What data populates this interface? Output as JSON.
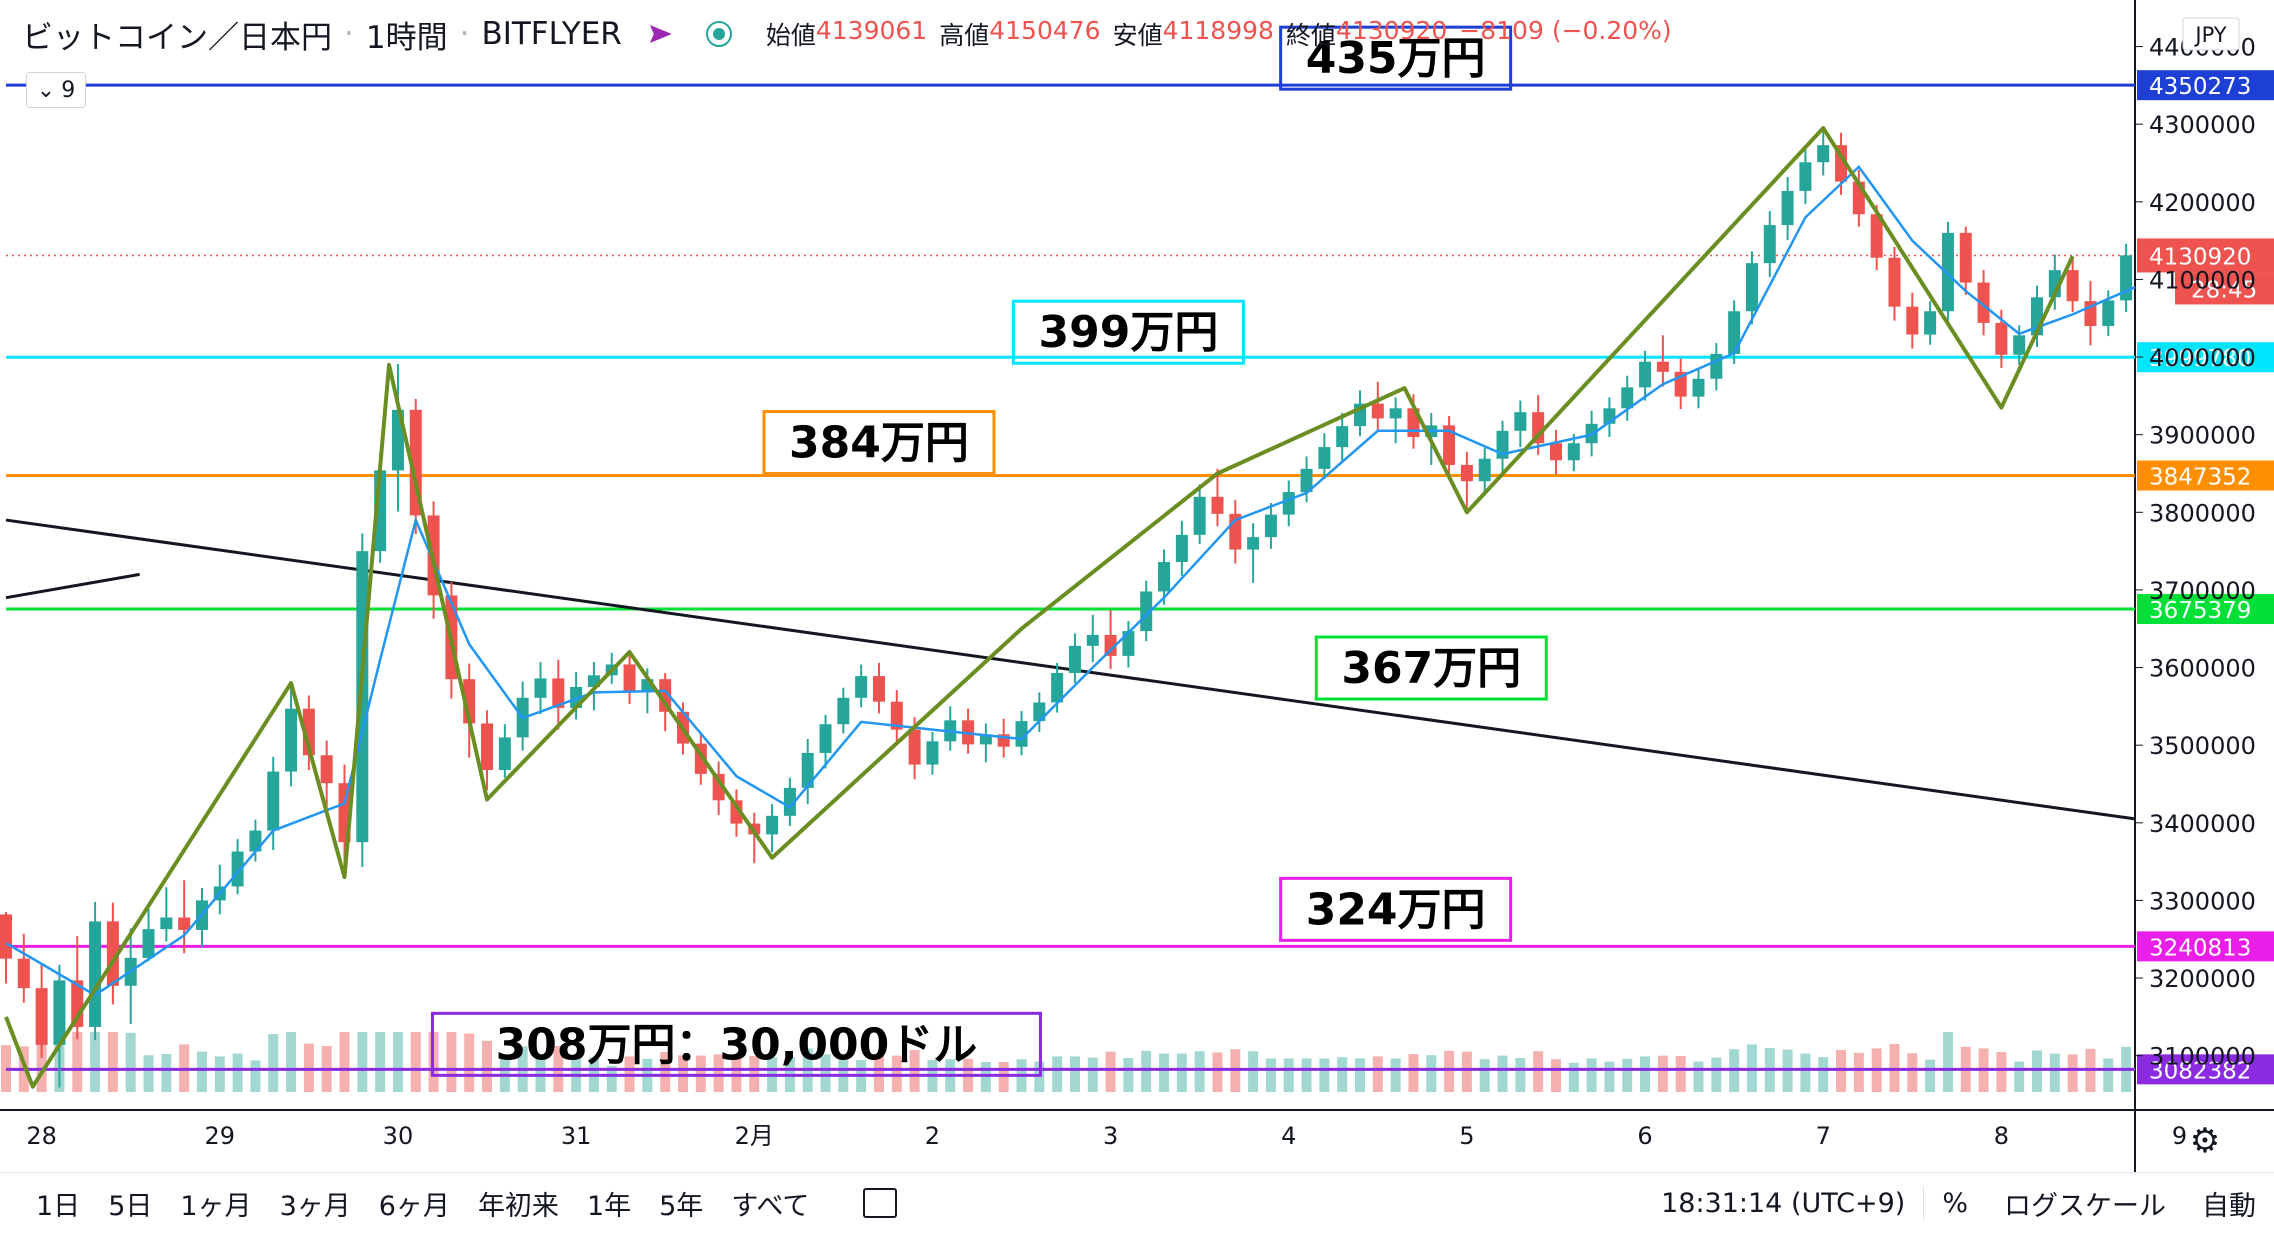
{
  "header": {
    "symbol": "ビットコイン／日本円",
    "interval": "1時間",
    "exchange": "BITFLYER",
    "ohlc": [
      {
        "key": "始値",
        "value": "4139061"
      },
      {
        "key": "高値",
        "value": "4150476"
      },
      {
        "key": "安値",
        "value": "4118998"
      },
      {
        "key": "終値",
        "value": "4130920"
      }
    ],
    "change": "−8109 (−0.20%)",
    "indicator_count": "9"
  },
  "currency_badge": "JPY",
  "last_price": "4130920",
  "countdown": "28:45",
  "colors": {
    "up": "#26a69a",
    "down": "#ef5350",
    "ma": "#2196f3",
    "zigzag": "#6b8e23",
    "trend": "#131722"
  },
  "chart_data": {
    "type": "candlestick",
    "y_axis": {
      "ylim": [
        3030000,
        4460000
      ],
      "ticks": [
        3100000,
        3200000,
        3300000,
        3400000,
        3500000,
        3600000,
        3700000,
        3800000,
        3900000,
        4000000,
        4100000,
        4200000,
        4300000,
        4400000
      ],
      "tick_labels": [
        "3100000",
        "3200000",
        "3300000",
        "3400000",
        "3500000",
        "3600000",
        "3700000",
        "3800000",
        "3900000",
        "4000000",
        "4100000",
        "4200000",
        "4300000",
        "4400000"
      ]
    },
    "x_axis": {
      "xlim": [
        0,
        11.95
      ],
      "ticks": [
        {
          "x": 0.2,
          "label": "28"
        },
        {
          "x": 1.2,
          "label": "29"
        },
        {
          "x": 2.2,
          "label": "30"
        },
        {
          "x": 3.2,
          "label": "31"
        },
        {
          "x": 4.2,
          "label": "2月"
        },
        {
          "x": 5.2,
          "label": "2"
        },
        {
          "x": 6.2,
          "label": "3"
        },
        {
          "x": 7.2,
          "label": "4"
        },
        {
          "x": 8.2,
          "label": "5"
        },
        {
          "x": 9.2,
          "label": "6"
        },
        {
          "x": 10.2,
          "label": "7"
        },
        {
          "x": 11.2,
          "label": "8"
        },
        {
          "x": 12.2,
          "label": "9"
        }
      ]
    },
    "levels": [
      {
        "price": 4350273,
        "label": "4350273",
        "note": "435万円",
        "color": "#1e3fd6",
        "note_x": 7.8
      },
      {
        "price": 3999780,
        "label": "3999780",
        "note": "399万円",
        "color": "#00e5ff",
        "note_x": 6.3
      },
      {
        "price": 3847352,
        "label": "3847352",
        "note": "384万円",
        "color": "#ff8f00",
        "note_x": 4.9
      },
      {
        "price": 3675379,
        "label": "3675379",
        "note": "367万円",
        "color": "#00e036",
        "note_x": 8.0
      },
      {
        "price": 3240813,
        "label": "3240813",
        "note": "324万円",
        "color": "#e91ee9",
        "note_x": 7.8
      },
      {
        "price": 3082382,
        "label": "3082382",
        "note": "308万円：30,000ドル",
        "color": "#8a2be2",
        "note_x": 4.1
      }
    ],
    "zigzag": [
      [
        0.0,
        3150000
      ],
      [
        0.15,
        3060000
      ],
      [
        1.6,
        3580000
      ],
      [
        1.9,
        3330000
      ],
      [
        2.15,
        3990000
      ],
      [
        2.7,
        3430000
      ],
      [
        3.5,
        3620000
      ],
      [
        4.3,
        3355000
      ],
      [
        5.7,
        3650000
      ],
      [
        6.8,
        3850000
      ],
      [
        7.85,
        3960000
      ],
      [
        8.2,
        3800000
      ],
      [
        10.2,
        4295000
      ],
      [
        11.2,
        3935000
      ],
      [
        11.6,
        4130000
      ]
    ],
    "trendlines": [
      {
        "from": [
          0.0,
          3790000
        ],
        "to": [
          11.95,
          3405000
        ]
      },
      {
        "from": [
          0.0,
          3690000
        ],
        "to": [
          0.75,
          3720000
        ]
      }
    ],
    "candles": [
      [
        0.0,
        3282000,
        3285000,
        3193000,
        3225000
      ],
      [
        0.1,
        3225000,
        3257000,
        3168000,
        3187000
      ],
      [
        0.2,
        3187000,
        3219000,
        3097000,
        3114000
      ],
      [
        0.3,
        3114000,
        3217000,
        3059000,
        3197000
      ],
      [
        0.4,
        3197000,
        3254000,
        3121000,
        3137000
      ],
      [
        0.5,
        3137000,
        3298000,
        3120000,
        3273000
      ],
      [
        0.6,
        3273000,
        3297000,
        3166000,
        3190000
      ],
      [
        0.7,
        3190000,
        3264000,
        3141000,
        3226000
      ],
      [
        0.8,
        3226000,
        3289000,
        3222000,
        3263000
      ],
      [
        0.9,
        3263000,
        3317000,
        3247000,
        3278000
      ],
      [
        1.0,
        3278000,
        3326000,
        3232000,
        3262000
      ],
      [
        1.1,
        3262000,
        3316000,
        3240000,
        3300000
      ],
      [
        1.2,
        3300000,
        3346000,
        3282000,
        3318000
      ],
      [
        1.3,
        3318000,
        3379000,
        3308000,
        3363000
      ],
      [
        1.4,
        3363000,
        3404000,
        3350000,
        3390000
      ],
      [
        1.5,
        3390000,
        3485000,
        3365000,
        3466000
      ],
      [
        1.6,
        3466000,
        3578000,
        3447000,
        3547000
      ],
      [
        1.7,
        3547000,
        3564000,
        3468000,
        3487000
      ],
      [
        1.8,
        3487000,
        3506000,
        3416000,
        3451000
      ],
      [
        1.9,
        3451000,
        3475000,
        3344000,
        3375000
      ],
      [
        2.0,
        3375000,
        3773000,
        3343000,
        3750000
      ],
      [
        2.1,
        3750000,
        3876000,
        3735000,
        3854000
      ],
      [
        2.2,
        3854000,
        3991000,
        3801000,
        3932000
      ],
      [
        2.3,
        3932000,
        3946000,
        3772000,
        3796000
      ],
      [
        2.4,
        3796000,
        3814000,
        3663000,
        3693000
      ],
      [
        2.5,
        3693000,
        3710000,
        3560000,
        3585000
      ],
      [
        2.6,
        3585000,
        3605000,
        3484000,
        3528000
      ],
      [
        2.7,
        3528000,
        3545000,
        3442000,
        3468000
      ],
      [
        2.8,
        3468000,
        3527000,
        3458000,
        3510000
      ],
      [
        2.9,
        3510000,
        3582000,
        3493000,
        3561000
      ],
      [
        3.0,
        3561000,
        3607000,
        3540000,
        3586000
      ],
      [
        3.1,
        3586000,
        3610000,
        3520000,
        3548000
      ],
      [
        3.2,
        3548000,
        3594000,
        3533000,
        3575000
      ],
      [
        3.3,
        3575000,
        3607000,
        3545000,
        3590000
      ],
      [
        3.4,
        3590000,
        3619000,
        3579000,
        3604000
      ],
      [
        3.5,
        3604000,
        3617000,
        3553000,
        3569000
      ],
      [
        3.6,
        3569000,
        3599000,
        3541000,
        3585000
      ],
      [
        3.7,
        3585000,
        3593000,
        3518000,
        3543000
      ],
      [
        3.8,
        3543000,
        3555000,
        3488000,
        3502000
      ],
      [
        3.9,
        3502000,
        3515000,
        3449000,
        3463000
      ],
      [
        4.0,
        3463000,
        3479000,
        3410000,
        3429000
      ],
      [
        4.1,
        3429000,
        3443000,
        3382000,
        3399000
      ],
      [
        4.2,
        3399000,
        3413000,
        3348000,
        3385000
      ],
      [
        4.3,
        3385000,
        3424000,
        3362000,
        3409000
      ],
      [
        4.4,
        3409000,
        3458000,
        3396000,
        3445000
      ],
      [
        4.5,
        3445000,
        3508000,
        3424000,
        3490000
      ],
      [
        4.6,
        3490000,
        3539000,
        3470000,
        3527000
      ],
      [
        4.7,
        3527000,
        3574000,
        3515000,
        3561000
      ],
      [
        4.8,
        3561000,
        3604000,
        3549000,
        3589000
      ],
      [
        4.9,
        3589000,
        3606000,
        3541000,
        3556000
      ],
      [
        5.0,
        3556000,
        3571000,
        3505000,
        3520000
      ],
      [
        5.1,
        3520000,
        3536000,
        3456000,
        3475000
      ],
      [
        5.2,
        3475000,
        3517000,
        3462000,
        3505000
      ],
      [
        5.3,
        3505000,
        3550000,
        3493000,
        3532000
      ],
      [
        5.4,
        3532000,
        3547000,
        3489000,
        3501000
      ],
      [
        5.5,
        3501000,
        3528000,
        3478000,
        3514000
      ],
      [
        5.6,
        3514000,
        3534000,
        3484000,
        3498000
      ],
      [
        5.7,
        3498000,
        3544000,
        3487000,
        3531000
      ],
      [
        5.8,
        3531000,
        3568000,
        3517000,
        3555000
      ],
      [
        5.9,
        3555000,
        3606000,
        3542000,
        3593000
      ],
      [
        6.0,
        3593000,
        3644000,
        3580000,
        3628000
      ],
      [
        6.1,
        3628000,
        3668000,
        3607000,
        3642000
      ],
      [
        6.2,
        3642000,
        3674000,
        3598000,
        3615000
      ],
      [
        6.3,
        3615000,
        3660000,
        3600000,
        3647000
      ],
      [
        6.4,
        3647000,
        3712000,
        3634000,
        3698000
      ],
      [
        6.5,
        3698000,
        3752000,
        3681000,
        3736000
      ],
      [
        6.6,
        3736000,
        3789000,
        3718000,
        3771000
      ],
      [
        6.7,
        3771000,
        3836000,
        3759000,
        3820000
      ],
      [
        6.8,
        3820000,
        3856000,
        3782000,
        3798000
      ],
      [
        6.9,
        3798000,
        3816000,
        3734000,
        3752000
      ],
      [
        7.0,
        3752000,
        3786000,
        3709000,
        3768000
      ],
      [
        7.1,
        3768000,
        3812000,
        3753000,
        3797000
      ],
      [
        7.2,
        3797000,
        3841000,
        3782000,
        3826000
      ],
      [
        7.3,
        3826000,
        3872000,
        3813000,
        3856000
      ],
      [
        7.4,
        3856000,
        3902000,
        3843000,
        3884000
      ],
      [
        7.5,
        3884000,
        3928000,
        3866000,
        3911000
      ],
      [
        7.6,
        3911000,
        3957000,
        3898000,
        3940000
      ],
      [
        7.7,
        3940000,
        3968000,
        3904000,
        3921000
      ],
      [
        7.8,
        3921000,
        3948000,
        3889000,
        3934000
      ],
      [
        7.9,
        3934000,
        3952000,
        3882000,
        3897000
      ],
      [
        8.0,
        3897000,
        3928000,
        3861000,
        3912000
      ],
      [
        8.1,
        3912000,
        3924000,
        3846000,
        3861000
      ],
      [
        8.2,
        3861000,
        3878000,
        3802000,
        3840000
      ],
      [
        8.3,
        3840000,
        3883000,
        3826000,
        3869000
      ],
      [
        8.4,
        3869000,
        3918000,
        3852000,
        3905000
      ],
      [
        8.5,
        3905000,
        3944000,
        3884000,
        3929000
      ],
      [
        8.6,
        3929000,
        3951000,
        3874000,
        3889000
      ],
      [
        8.7,
        3889000,
        3906000,
        3849000,
        3867000
      ],
      [
        8.8,
        3867000,
        3901000,
        3853000,
        3889000
      ],
      [
        8.9,
        3889000,
        3931000,
        3872000,
        3914000
      ],
      [
        9.0,
        3914000,
        3948000,
        3897000,
        3934000
      ],
      [
        9.1,
        3934000,
        3976000,
        3918000,
        3961000
      ],
      [
        9.2,
        3961000,
        4008000,
        3944000,
        3994000
      ],
      [
        9.3,
        3994000,
        4028000,
        3962000,
        3981000
      ],
      [
        9.4,
        3981000,
        3998000,
        3933000,
        3949000
      ],
      [
        9.5,
        3949000,
        3985000,
        3934000,
        3972000
      ],
      [
        9.6,
        3972000,
        4018000,
        3957000,
        4004000
      ],
      [
        9.7,
        4004000,
        4073000,
        3991000,
        4059000
      ],
      [
        9.8,
        4059000,
        4136000,
        4042000,
        4121000
      ],
      [
        9.9,
        4121000,
        4188000,
        4103000,
        4170000
      ],
      [
        10.0,
        4170000,
        4232000,
        4151000,
        4214000
      ],
      [
        10.1,
        4214000,
        4268000,
        4197000,
        4251000
      ],
      [
        10.2,
        4251000,
        4296000,
        4234000,
        4273000
      ],
      [
        10.3,
        4273000,
        4289000,
        4209000,
        4226000
      ],
      [
        10.4,
        4226000,
        4241000,
        4168000,
        4184000
      ],
      [
        10.5,
        4184000,
        4196000,
        4112000,
        4128000
      ],
      [
        10.6,
        4128000,
        4142000,
        4047000,
        4065000
      ],
      [
        10.7,
        4065000,
        4083000,
        4011000,
        4029000
      ],
      [
        10.8,
        4029000,
        4072000,
        4016000,
        4059000
      ],
      [
        10.9,
        4059000,
        4174000,
        4043000,
        4160000
      ],
      [
        11.0,
        4160000,
        4168000,
        4080000,
        4096000
      ],
      [
        11.1,
        4096000,
        4112000,
        4028000,
        4044000
      ],
      [
        11.2,
        4044000,
        4061000,
        3986000,
        4003000
      ],
      [
        11.3,
        4003000,
        4041000,
        3990000,
        4028000
      ],
      [
        11.4,
        4028000,
        4092000,
        4013000,
        4077000
      ],
      [
        11.5,
        4077000,
        4132000,
        4061000,
        4112000
      ],
      [
        11.6,
        4112000,
        4127000,
        4058000,
        4072000
      ],
      [
        11.7,
        4072000,
        4098000,
        4015000,
        4040000
      ],
      [
        11.8,
        4040000,
        4086000,
        4027000,
        4073000
      ],
      [
        11.9,
        4073000,
        4146000,
        4058000,
        4131000
      ]
    ],
    "ma": [
      [
        0.0,
        3245000
      ],
      [
        0.5,
        3178000
      ],
      [
        1.0,
        3255000
      ],
      [
        1.5,
        3390000
      ],
      [
        1.9,
        3425000
      ],
      [
        2.1,
        3610000
      ],
      [
        2.3,
        3790000
      ],
      [
        2.6,
        3630000
      ],
      [
        2.9,
        3535000
      ],
      [
        3.3,
        3568000
      ],
      [
        3.7,
        3570000
      ],
      [
        4.1,
        3460000
      ],
      [
        4.4,
        3420000
      ],
      [
        4.8,
        3530000
      ],
      [
        5.2,
        3520000
      ],
      [
        5.7,
        3508000
      ],
      [
        6.1,
        3600000
      ],
      [
        6.5,
        3690000
      ],
      [
        6.9,
        3790000
      ],
      [
        7.3,
        3825000
      ],
      [
        7.7,
        3905000
      ],
      [
        8.1,
        3905000
      ],
      [
        8.4,
        3875000
      ],
      [
        8.9,
        3900000
      ],
      [
        9.3,
        3965000
      ],
      [
        9.7,
        4005000
      ],
      [
        10.1,
        4180000
      ],
      [
        10.4,
        4245000
      ],
      [
        10.7,
        4150000
      ],
      [
        11.0,
        4085000
      ],
      [
        11.3,
        4030000
      ],
      [
        11.6,
        4055000
      ],
      [
        11.95,
        4090000
      ]
    ],
    "volume_note": "volume bars shown at the bottom of the price pane"
  },
  "time_axis_bar": {
    "ranges": [
      "1日",
      "5日",
      "1ヶ月",
      "3ヶ月",
      "6ヶ月",
      "年初来",
      "1年",
      "5年",
      "すべて"
    ],
    "clock": "18:31:14 (UTC+9)",
    "percent": "%",
    "log_scale": "ログスケール",
    "auto": "自動"
  }
}
